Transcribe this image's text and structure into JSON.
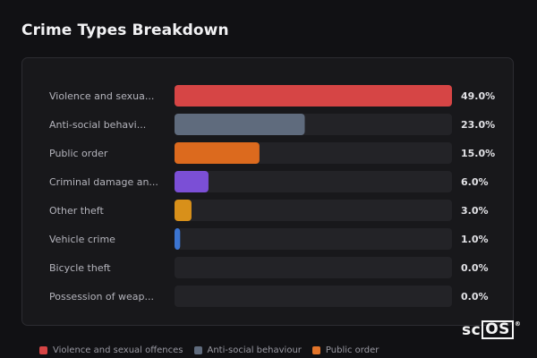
{
  "title": "Crime Types Breakdown",
  "logo": {
    "prefix": "sc",
    "boxed": "OS",
    "mark": "®"
  },
  "chart_data": {
    "type": "bar",
    "orientation": "horizontal",
    "title": "Crime Types Breakdown",
    "value_unit": "%",
    "xlim": [
      0,
      49
    ],
    "categories": [
      "Violence and sexua...",
      "Anti-social behavi...",
      "Public order",
      "Criminal damage an...",
      "Other theft",
      "Vehicle crime",
      "Bicycle theft",
      "Possession of weap..."
    ],
    "values": [
      49.0,
      23.0,
      15.0,
      6.0,
      3.0,
      1.0,
      0.0,
      0.0
    ],
    "value_labels": [
      "49.0%",
      "23.0%",
      "15.0%",
      "6.0%",
      "3.0%",
      "1.0%",
      "0.0%",
      "0.0%"
    ],
    "colors": [
      "#d64545",
      "#5f6b7d",
      "#dc6a1e",
      "#7b4fd6",
      "#d8901a",
      "#3b74d1",
      "#55555c",
      "#55555c"
    ],
    "track_color": "#232327",
    "legend": {
      "placement": "bottom-left",
      "entries": [
        {
          "label": "Violence and sexual offences",
          "color": "#d64545"
        },
        {
          "label": "Anti-social behaviour",
          "color": "#5f6b7d"
        },
        {
          "label": "Public order",
          "color": "#e2742a"
        }
      ]
    }
  }
}
